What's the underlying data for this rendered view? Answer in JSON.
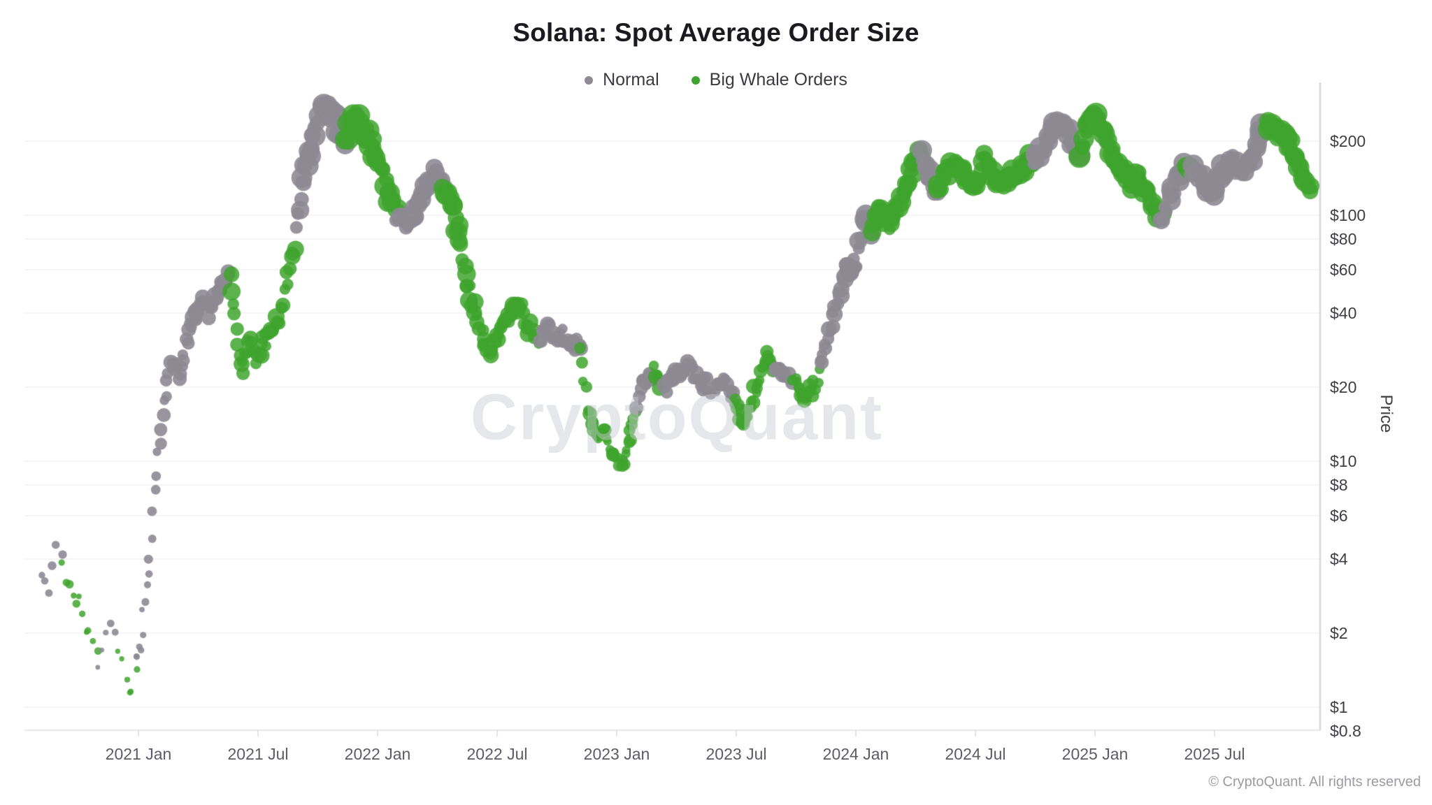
{
  "watermark": "CryptoQuant",
  "copyright": "© CryptoQuant. All rights reserved",
  "chart_data": {
    "type": "scatter",
    "title": "Solana: Spot Average Order Size",
    "legend_position": "top",
    "grid": true,
    "style": {
      "background": "#ffffff",
      "grid_color": "#f1f1f4",
      "bottom_axis_color": "#e6e6ec",
      "right_axis_color": "#d5d5dd",
      "tick_mark_color": "#d9d9df",
      "x_label_color": "#5c5c66",
      "y_label_color": "#3f3f46",
      "title_color": "#1b1b1f",
      "legend_text_color": "#3a3a40",
      "watermark_color": "rgba(199,201,211,0.45)",
      "copyright_color": "#9b9ba3"
    },
    "series": [
      {
        "key": "N",
        "name": "Normal",
        "color": "#8d8a94",
        "alpha": 0.9
      },
      {
        "key": "W",
        "name": "Big Whale Orders",
        "color": "#3fa42e",
        "alpha": 0.85
      }
    ],
    "y_axis": {
      "label": "Price",
      "scale": "log",
      "range": [
        0.8,
        340
      ],
      "ticks": [
        {
          "label": "$200",
          "value": 200
        },
        {
          "label": "$100",
          "value": 100
        },
        {
          "label": "$80",
          "value": 80
        },
        {
          "label": "$60",
          "value": 60
        },
        {
          "label": "$40",
          "value": 40
        },
        {
          "label": "$20",
          "value": 20
        },
        {
          "label": "$10",
          "value": 10
        },
        {
          "label": "$8",
          "value": 8
        },
        {
          "label": "$6",
          "value": 6
        },
        {
          "label": "$4",
          "value": 4
        },
        {
          "label": "$2",
          "value": 2
        },
        {
          "label": "$1",
          "value": 1
        },
        {
          "label": "$0.8",
          "value": 0.8
        }
      ]
    },
    "x_axis": {
      "unit": "months since 2020-07-01",
      "range_m": [
        1.0,
        65.2
      ],
      "ticks": [
        {
          "label": "2021 Jan",
          "m": 6
        },
        {
          "label": "2021 Jul",
          "m": 12
        },
        {
          "label": "2022 Jan",
          "m": 18
        },
        {
          "label": "2022 Jul",
          "m": 24
        },
        {
          "label": "2023 Jan",
          "m": 30
        },
        {
          "label": "2023 Jul",
          "m": 36
        },
        {
          "label": "2024 Jan",
          "m": 42
        },
        {
          "label": "2024 Jul",
          "m": 48
        },
        {
          "label": "2025 Jan",
          "m": 54
        },
        {
          "label": "2025 Jul",
          "m": 60
        }
      ]
    },
    "price_path_format": [
      "month_index",
      "price_usd",
      "series_key"
    ],
    "price_path": [
      [
        1.1,
        3.6,
        "N"
      ],
      [
        1.5,
        2.9,
        "N"
      ],
      [
        1.9,
        4.6,
        "N"
      ],
      [
        2.2,
        3.8,
        "N"
      ],
      [
        2.5,
        3.2,
        "W"
      ],
      [
        3.0,
        2.7,
        "W"
      ],
      [
        3.5,
        2.1,
        "W"
      ],
      [
        4.0,
        1.55,
        "W"
      ],
      [
        4.2,
        1.8,
        "N"
      ],
      [
        4.6,
        2.3,
        "N"
      ],
      [
        5.0,
        1.8,
        "N"
      ],
      [
        5.2,
        1.5,
        "W"
      ],
      [
        5.65,
        1.1,
        "W"
      ],
      [
        5.9,
        1.5,
        "W"
      ],
      [
        6.1,
        1.8,
        "N"
      ],
      [
        6.5,
        3.5,
        "N"
      ],
      [
        6.9,
        9,
        "N"
      ],
      [
        7.3,
        18,
        "N"
      ],
      [
        7.7,
        26,
        "N"
      ],
      [
        8.1,
        22,
        "N"
      ],
      [
        8.6,
        35,
        "N"
      ],
      [
        9.1,
        44,
        "N"
      ],
      [
        9.6,
        40,
        "N"
      ],
      [
        10.1,
        50,
        "N"
      ],
      [
        10.6,
        58,
        "N"
      ],
      [
        10.9,
        34,
        "W"
      ],
      [
        11.2,
        24,
        "W"
      ],
      [
        11.5,
        31,
        "W"
      ],
      [
        11.9,
        26,
        "W"
      ],
      [
        12.3,
        30,
        "W"
      ],
      [
        12.7,
        34,
        "W"
      ],
      [
        13.1,
        38,
        "W"
      ],
      [
        13.5,
        55,
        "W"
      ],
      [
        13.9,
        85,
        "W"
      ],
      [
        14.2,
        130,
        "N"
      ],
      [
        14.7,
        200,
        "N"
      ],
      [
        15.2,
        255,
        "N"
      ],
      [
        15.6,
        275,
        "N"
      ],
      [
        16.0,
        230,
        "N"
      ],
      [
        16.4,
        205,
        "N"
      ],
      [
        16.7,
        240,
        "W"
      ],
      [
        17.0,
        250,
        "W"
      ],
      [
        17.4,
        215,
        "W"
      ],
      [
        17.8,
        185,
        "W"
      ],
      [
        18.2,
        155,
        "W"
      ],
      [
        18.6,
        120,
        "W"
      ],
      [
        19.0,
        102,
        "W"
      ],
      [
        19.4,
        95,
        "N"
      ],
      [
        19.8,
        100,
        "N"
      ],
      [
        20.3,
        120,
        "N"
      ],
      [
        20.8,
        150,
        "N"
      ],
      [
        21.3,
        135,
        "N"
      ],
      [
        21.7,
        110,
        "W"
      ],
      [
        22.1,
        80,
        "W"
      ],
      [
        22.5,
        52,
        "W"
      ],
      [
        22.9,
        42,
        "W"
      ],
      [
        23.3,
        30,
        "W"
      ],
      [
        23.7,
        27,
        "W"
      ],
      [
        24.1,
        34,
        "W"
      ],
      [
        24.6,
        39,
        "W"
      ],
      [
        25.1,
        42,
        "W"
      ],
      [
        25.6,
        35,
        "W"
      ],
      [
        26.1,
        32,
        "W"
      ],
      [
        26.6,
        34,
        "N"
      ],
      [
        27.1,
        33,
        "N"
      ],
      [
        27.7,
        31,
        "N"
      ],
      [
        28.2,
        29,
        "N"
      ],
      [
        28.5,
        17,
        "W"
      ],
      [
        28.9,
        13.5,
        "W"
      ],
      [
        29.4,
        12.5,
        "W"
      ],
      [
        29.9,
        10.5,
        "W"
      ],
      [
        30.3,
        9.7,
        "W"
      ],
      [
        30.7,
        13,
        "W"
      ],
      [
        31.0,
        17,
        "W"
      ],
      [
        31.3,
        21,
        "N"
      ],
      [
        31.9,
        23,
        "N"
      ],
      [
        32.4,
        19.5,
        "W"
      ],
      [
        32.9,
        22,
        "N"
      ],
      [
        33.5,
        24.5,
        "N"
      ],
      [
        34.1,
        21.5,
        "N"
      ],
      [
        34.7,
        20,
        "N"
      ],
      [
        35.3,
        21,
        "N"
      ],
      [
        35.9,
        18,
        "N"
      ],
      [
        36.3,
        14.5,
        "W"
      ],
      [
        36.7,
        16.5,
        "W"
      ],
      [
        37.1,
        21,
        "W"
      ],
      [
        37.5,
        27,
        "W"
      ],
      [
        37.9,
        24.5,
        "W"
      ],
      [
        38.3,
        24,
        "N"
      ],
      [
        38.9,
        21.5,
        "N"
      ],
      [
        39.4,
        18.5,
        "W"
      ],
      [
        39.9,
        20,
        "W"
      ],
      [
        40.2,
        24,
        "W"
      ],
      [
        40.5,
        30,
        "N"
      ],
      [
        41.0,
        42,
        "N"
      ],
      [
        41.5,
        58,
        "N"
      ],
      [
        42.0,
        65,
        "N"
      ],
      [
        42.4,
        98,
        "N"
      ],
      [
        42.8,
        88,
        "N"
      ],
      [
        43.2,
        105,
        "W"
      ],
      [
        43.6,
        92,
        "W"
      ],
      [
        44.0,
        102,
        "W"
      ],
      [
        44.4,
        120,
        "W"
      ],
      [
        44.9,
        165,
        "W"
      ],
      [
        45.3,
        178,
        "W"
      ],
      [
        45.7,
        150,
        "N"
      ],
      [
        46.1,
        128,
        "N"
      ],
      [
        46.5,
        150,
        "W"
      ],
      [
        47.0,
        168,
        "W"
      ],
      [
        47.5,
        140,
        "W"
      ],
      [
        48.0,
        135,
        "W"
      ],
      [
        48.5,
        168,
        "W"
      ],
      [
        49.0,
        145,
        "W"
      ],
      [
        49.4,
        132,
        "W"
      ],
      [
        49.9,
        148,
        "W"
      ],
      [
        50.4,
        160,
        "W"
      ],
      [
        50.9,
        172,
        "W"
      ],
      [
        51.3,
        180,
        "N"
      ],
      [
        51.9,
        235,
        "N"
      ],
      [
        52.3,
        246,
        "N"
      ],
      [
        52.8,
        205,
        "N"
      ],
      [
        53.2,
        182,
        "N"
      ],
      [
        53.6,
        228,
        "W"
      ],
      [
        54.0,
        258,
        "W"
      ],
      [
        54.4,
        222,
        "W"
      ],
      [
        54.8,
        178,
        "W"
      ],
      [
        55.3,
        148,
        "W"
      ],
      [
        55.8,
        133,
        "W"
      ],
      [
        56.2,
        142,
        "W"
      ],
      [
        56.6,
        126,
        "W"
      ],
      [
        57.0,
        104,
        "W"
      ],
      [
        57.4,
        95,
        "W"
      ],
      [
        57.8,
        120,
        "N"
      ],
      [
        58.2,
        146,
        "N"
      ],
      [
        58.6,
        158,
        "N"
      ],
      [
        58.9,
        150,
        "W"
      ],
      [
        59.2,
        154,
        "N"
      ],
      [
        59.6,
        133,
        "N"
      ],
      [
        60.0,
        128,
        "N"
      ],
      [
        60.4,
        150,
        "N"
      ],
      [
        60.9,
        164,
        "N"
      ],
      [
        61.4,
        157,
        "N"
      ],
      [
        61.9,
        177,
        "N"
      ],
      [
        62.3,
        222,
        "N"
      ],
      [
        62.7,
        240,
        "N"
      ],
      [
        63.0,
        228,
        "W"
      ],
      [
        63.4,
        214,
        "W"
      ],
      [
        63.8,
        188,
        "W"
      ],
      [
        64.2,
        163,
        "W"
      ],
      [
        64.6,
        142,
        "W"
      ],
      [
        64.9,
        127,
        "W"
      ]
    ]
  }
}
